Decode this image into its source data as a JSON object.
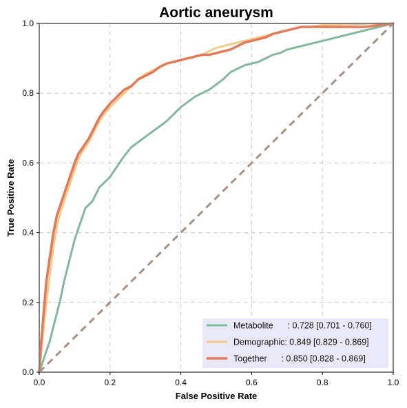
{
  "chart_data": {
    "type": "line",
    "title": "Aortic aneurysm",
    "xlabel": "False Positive Rate",
    "ylabel": "True Positive Rate",
    "xlim": [
      0,
      1
    ],
    "ylim": [
      0,
      1
    ],
    "xticks": [
      "0.0",
      "0.2",
      "0.4",
      "0.6",
      "0.8",
      "1.0"
    ],
    "yticks": [
      "0.0",
      "0.2",
      "0.4",
      "0.6",
      "0.8",
      "1.0"
    ],
    "grid": true,
    "legend_position": "bottom-right",
    "colors": {
      "Metabolite": "#82b89b",
      "Demographic": "#f5c98a",
      "Together": "#e07a58",
      "diagonal": "#a98f82",
      "axes": "#808080",
      "grid": "#cccccc",
      "legend_bg": "#e8e8f6"
    },
    "series": [
      {
        "name": "Metabolite",
        "label": "Metabolite      : 0.728 [0.701 - 0.760]",
        "x": [
          0,
          0.01,
          0.02,
          0.03,
          0.04,
          0.05,
          0.06,
          0.07,
          0.08,
          0.09,
          0.1,
          0.11,
          0.12,
          0.13,
          0.14,
          0.15,
          0.16,
          0.17,
          0.18,
          0.2,
          0.22,
          0.24,
          0.26,
          0.28,
          0.3,
          0.32,
          0.34,
          0.36,
          0.38,
          0.4,
          0.42,
          0.44,
          0.46,
          0.48,
          0.5,
          0.52,
          0.54,
          0.56,
          0.58,
          0.6,
          0.62,
          0.64,
          0.66,
          0.68,
          0.7,
          0.72,
          0.74,
          0.76,
          0.78,
          0.8,
          0.82,
          0.84,
          0.86,
          0.88,
          0.9,
          0.92,
          0.94,
          0.96,
          0.98,
          1.0
        ],
        "y": [
          0,
          0.03,
          0.06,
          0.09,
          0.13,
          0.17,
          0.21,
          0.26,
          0.3,
          0.34,
          0.38,
          0.41,
          0.44,
          0.47,
          0.48,
          0.49,
          0.51,
          0.53,
          0.54,
          0.56,
          0.59,
          0.62,
          0.645,
          0.66,
          0.675,
          0.69,
          0.705,
          0.72,
          0.74,
          0.76,
          0.775,
          0.79,
          0.8,
          0.81,
          0.825,
          0.84,
          0.86,
          0.87,
          0.88,
          0.885,
          0.89,
          0.9,
          0.91,
          0.915,
          0.925,
          0.93,
          0.935,
          0.94,
          0.945,
          0.95,
          0.955,
          0.96,
          0.965,
          0.97,
          0.975,
          0.98,
          0.985,
          0.99,
          0.995,
          1.0
        ]
      },
      {
        "name": "Demographic",
        "label": "Demographic: 0.849 [0.829 - 0.869]",
        "x": [
          0,
          0.005,
          0.01,
          0.015,
          0.02,
          0.03,
          0.04,
          0.05,
          0.06,
          0.07,
          0.08,
          0.09,
          0.1,
          0.11,
          0.12,
          0.13,
          0.14,
          0.15,
          0.16,
          0.17,
          0.18,
          0.2,
          0.22,
          0.24,
          0.26,
          0.28,
          0.3,
          0.32,
          0.34,
          0.36,
          0.38,
          0.4,
          0.42,
          0.44,
          0.46,
          0.48,
          0.5,
          0.52,
          0.54,
          0.56,
          0.58,
          0.6,
          0.62,
          0.64,
          0.66,
          0.68,
          0.7,
          0.72,
          0.74,
          0.76,
          0.78,
          0.8,
          0.84,
          0.88,
          0.92,
          0.96,
          1.0
        ],
        "y": [
          0,
          0.05,
          0.1,
          0.15,
          0.2,
          0.28,
          0.36,
          0.42,
          0.46,
          0.49,
          0.52,
          0.55,
          0.58,
          0.61,
          0.63,
          0.645,
          0.66,
          0.68,
          0.7,
          0.72,
          0.735,
          0.76,
          0.78,
          0.8,
          0.82,
          0.84,
          0.855,
          0.865,
          0.875,
          0.885,
          0.89,
          0.895,
          0.9,
          0.905,
          0.91,
          0.92,
          0.93,
          0.935,
          0.94,
          0.945,
          0.95,
          0.955,
          0.96,
          0.965,
          0.97,
          0.975,
          0.98,
          0.985,
          0.99,
          0.99,
          0.992,
          0.995,
          0.997,
          0.998,
          0.999,
          1.0,
          1.0
        ]
      },
      {
        "name": "Together",
        "label": "Together      : 0.850 [0.828 - 0.869]",
        "x": [
          0,
          0.005,
          0.01,
          0.015,
          0.02,
          0.03,
          0.04,
          0.05,
          0.06,
          0.07,
          0.08,
          0.09,
          0.1,
          0.11,
          0.12,
          0.13,
          0.14,
          0.15,
          0.16,
          0.17,
          0.18,
          0.2,
          0.22,
          0.24,
          0.26,
          0.28,
          0.3,
          0.32,
          0.34,
          0.36,
          0.38,
          0.4,
          0.42,
          0.44,
          0.46,
          0.48,
          0.5,
          0.52,
          0.54,
          0.56,
          0.58,
          0.6,
          0.62,
          0.64,
          0.66,
          0.68,
          0.7,
          0.72,
          0.74,
          0.76,
          0.78,
          0.8,
          0.84,
          0.88,
          0.92,
          0.96,
          1.0
        ],
        "y": [
          0,
          0.08,
          0.14,
          0.2,
          0.26,
          0.33,
          0.4,
          0.45,
          0.48,
          0.51,
          0.54,
          0.57,
          0.6,
          0.625,
          0.64,
          0.655,
          0.67,
          0.69,
          0.71,
          0.73,
          0.745,
          0.77,
          0.79,
          0.81,
          0.82,
          0.84,
          0.85,
          0.86,
          0.875,
          0.885,
          0.89,
          0.895,
          0.9,
          0.905,
          0.91,
          0.91,
          0.915,
          0.92,
          0.925,
          0.935,
          0.945,
          0.95,
          0.955,
          0.96,
          0.97,
          0.975,
          0.98,
          0.985,
          0.99,
          0.99,
          0.99,
          0.99,
          0.99,
          0.99,
          0.99,
          0.995,
          1.0
        ]
      }
    ],
    "reference_line": {
      "x": [
        0,
        1
      ],
      "y": [
        0,
        1
      ]
    }
  }
}
